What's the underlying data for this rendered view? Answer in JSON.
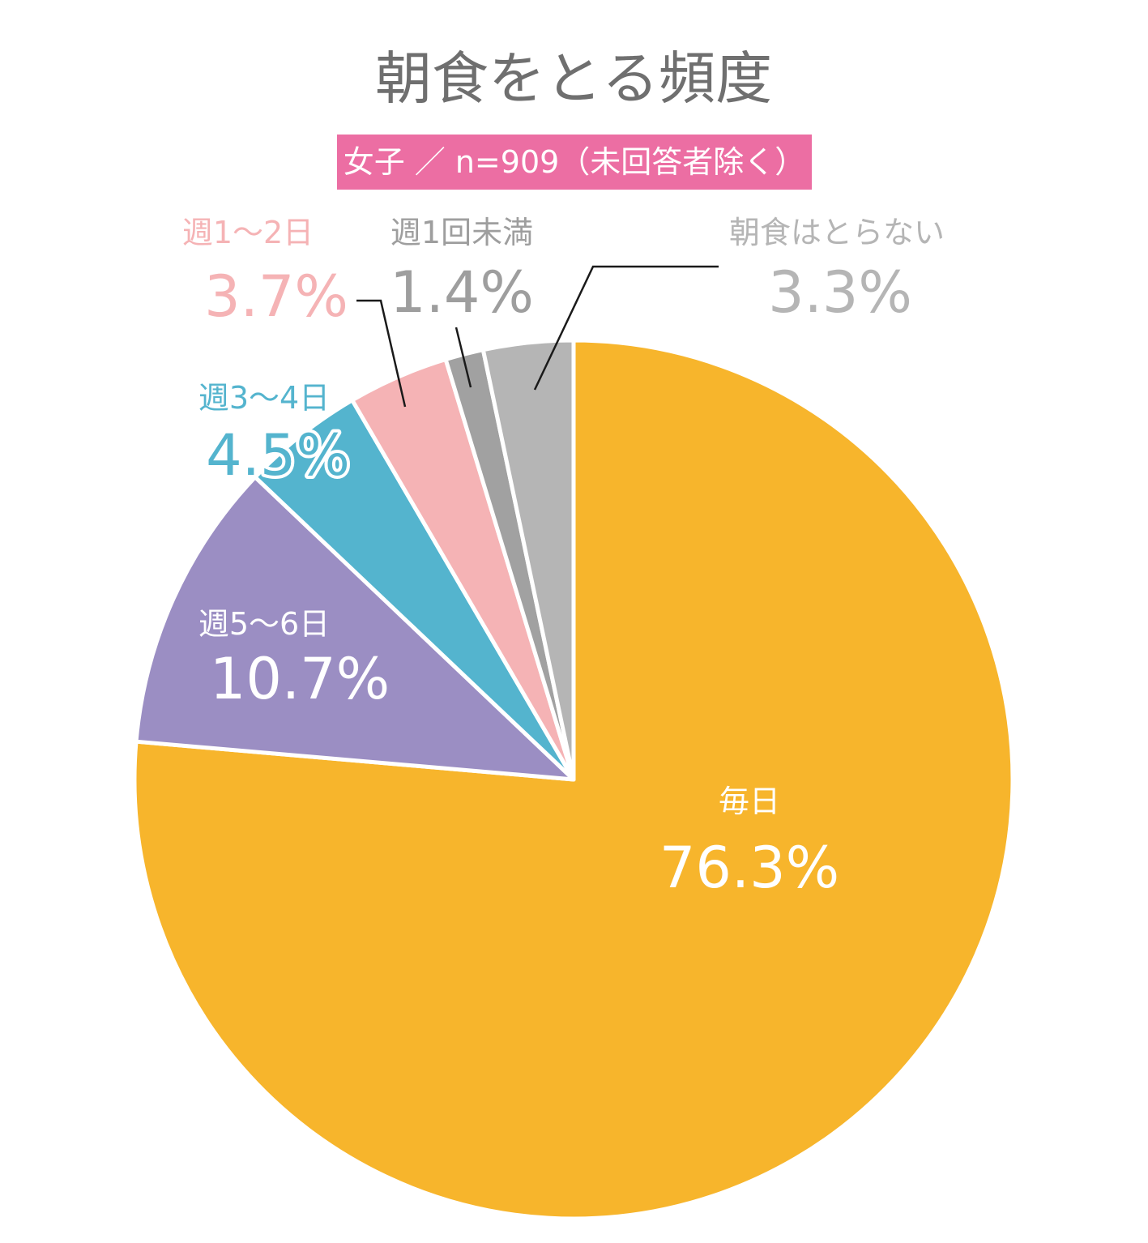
{
  "chart_data": {
    "type": "pie",
    "title": "朝食をとる頻度",
    "subtitle": "女子 ／ n=909（未回答者除く）",
    "start_angle_deg": 0,
    "direction": "clockwise",
    "slices": [
      {
        "label": "毎日",
        "value": 76.3,
        "display": "76.3%",
        "color": "#f7b52c",
        "label_color": "#ffffff"
      },
      {
        "label": "週5～6日",
        "value": 10.7,
        "display": "10.7%",
        "color": "#9b8ec3",
        "label_color": "#ffffff"
      },
      {
        "label": "週3～4日",
        "value": 4.5,
        "display": "4.5%",
        "color": "#54b4ce",
        "label_color": "#54b4ce",
        "label_outlined": true
      },
      {
        "label": "週1～2日",
        "value": 3.7,
        "display": "3.7%",
        "color": "#f5b3b5",
        "label_color": "#f5b3b5"
      },
      {
        "label": "週1回未満",
        "value": 1.4,
        "display": "1.4%",
        "color": "#a1a1a1",
        "label_color": "#9e9e9e"
      },
      {
        "label": "朝食はとらない",
        "value": 3.3,
        "display": "3.3%",
        "color": "#b5b5b5",
        "label_color": "#b5b5b5"
      }
    ]
  }
}
